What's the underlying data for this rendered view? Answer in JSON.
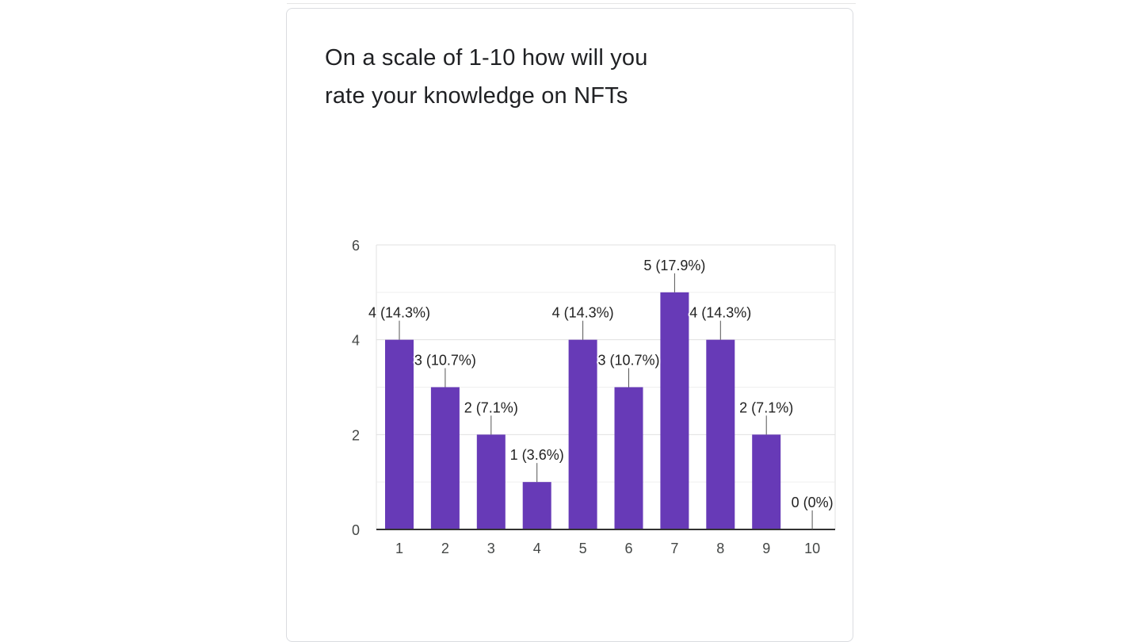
{
  "question": {
    "title": "On a scale of 1-10 how will you rate your knowledge on NFTs"
  },
  "chart_data": {
    "type": "bar",
    "title": "On a scale of 1-10 how will you rate your knowledge on NFTs",
    "categories": [
      "1",
      "2",
      "3",
      "4",
      "5",
      "6",
      "7",
      "8",
      "9",
      "10"
    ],
    "values": [
      4,
      3,
      2,
      1,
      4,
      3,
      5,
      4,
      2,
      0
    ],
    "data_labels": [
      "4 (14.3%)",
      "3 (10.7%)",
      "2 (7.1%)",
      "1 (3.6%)",
      "4 (14.3%)",
      "3 (10.7%)",
      "5 (17.9%)",
      "4 (14.3%)",
      "2 (7.1%)",
      "0 (0%)"
    ],
    "yticks": [
      "0",
      "2",
      "4",
      "6"
    ],
    "ylim": [
      0,
      6
    ],
    "xlabel": "",
    "ylabel": "",
    "grid": true,
    "legend": "none",
    "bar_color": "#673ab7",
    "grid_color": "#e0e0e0",
    "axis_color": "#333333"
  }
}
